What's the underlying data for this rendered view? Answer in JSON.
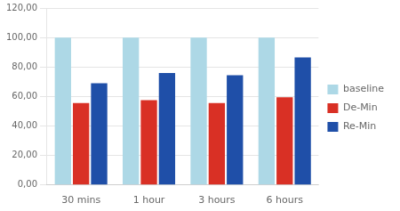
{
  "chart_data": {
    "type": "bar",
    "categories": [
      "30 mins",
      "1 hour",
      "3 hours",
      "6 hours"
    ],
    "series": [
      {
        "name": "baseline",
        "color": "#add8e6",
        "values": [
          100,
          100,
          100,
          100
        ]
      },
      {
        "name": "De-Min",
        "color": "#d93025",
        "values": [
          55.5,
          57.5,
          55.5,
          59.5
        ]
      },
      {
        "name": "Re-Min",
        "color": "#1f4fa8",
        "values": [
          69,
          76,
          74.5,
          86.5
        ]
      }
    ],
    "ylim": [
      0,
      120
    ],
    "yticks": [
      {
        "value": 0,
        "label": "0,00"
      },
      {
        "value": 20,
        "label": "20,00"
      },
      {
        "value": 40,
        "label": "40,00"
      },
      {
        "value": 60,
        "label": "60,00"
      },
      {
        "value": 80,
        "label": "80,00"
      },
      {
        "value": 100,
        "label": "100,00"
      },
      {
        "value": 120,
        "label": "120,00"
      }
    ],
    "grid": true,
    "legend": "right"
  }
}
